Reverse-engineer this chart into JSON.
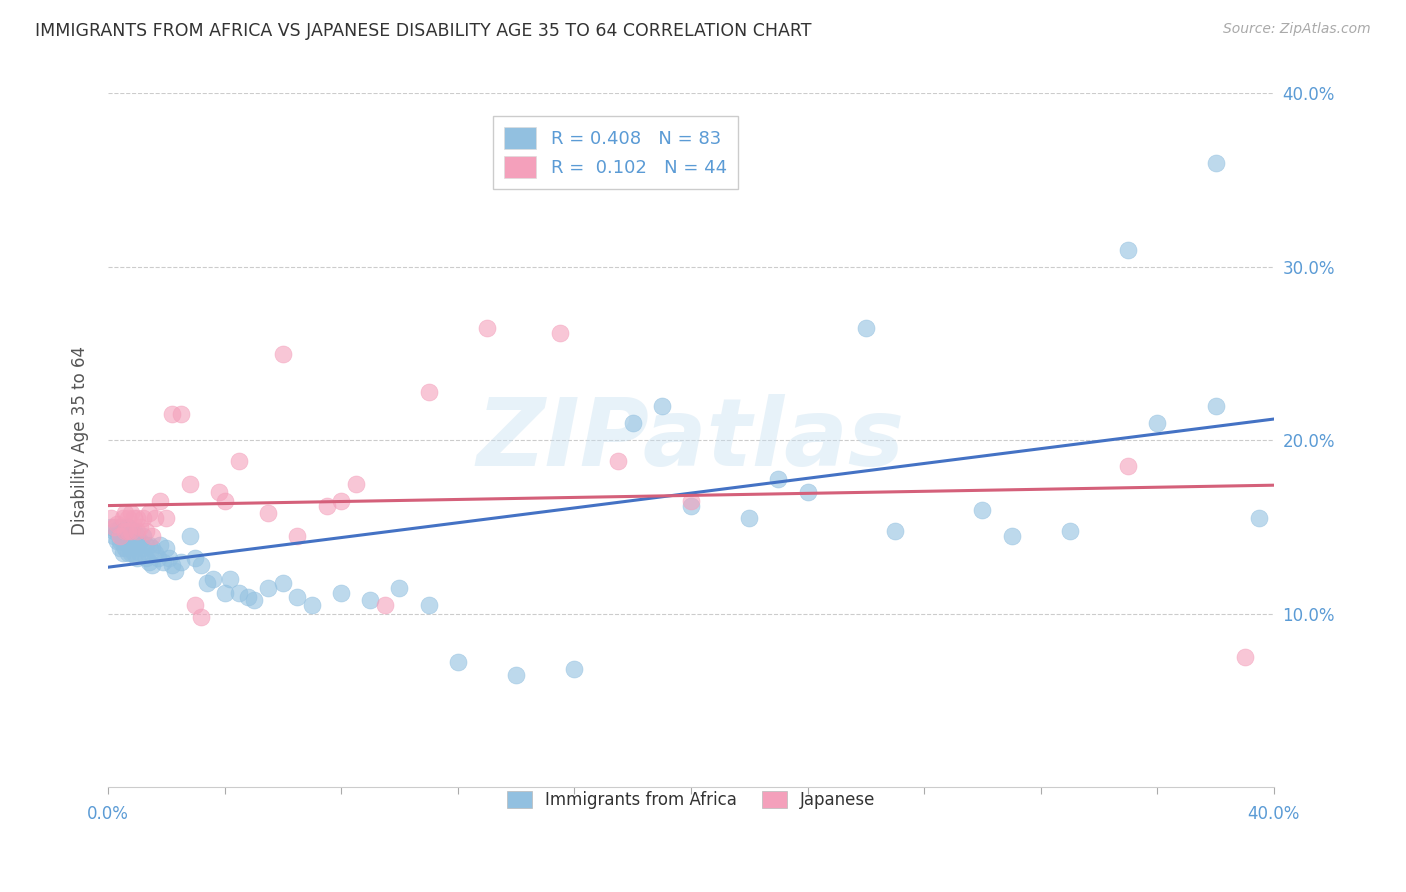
{
  "title": "IMMIGRANTS FROM AFRICA VS JAPANESE DISABILITY AGE 35 TO 64 CORRELATION CHART",
  "source": "Source: ZipAtlas.com",
  "ylabel": "Disability Age 35 to 64",
  "xlim": [
    0.0,
    0.4
  ],
  "ylim": [
    0.0,
    0.4
  ],
  "xticks": [
    0.0,
    0.4
  ],
  "xticklabels": [
    "0.0%",
    "40.0%"
  ],
  "yticks": [
    0.1,
    0.2,
    0.3,
    0.4
  ],
  "yticklabels": [
    "10.0%",
    "20.0%",
    "30.0%",
    "40.0%"
  ],
  "legend_label1": "R = 0.408   N = 83",
  "legend_label2": "R =  0.102   N = 44",
  "legend_labels_bottom": [
    "Immigrants from Africa",
    "Japanese"
  ],
  "watermark": "ZIPatlas",
  "blue_color": "#92c0e0",
  "pink_color": "#f4a0bb",
  "blue_line_color": "#4472c4",
  "pink_line_color": "#d4607a",
  "axis_color": "#5b9bd5",
  "grid_color": "#cccccc",
  "africa_x": [
    0.001,
    0.002,
    0.002,
    0.003,
    0.003,
    0.004,
    0.004,
    0.004,
    0.005,
    0.005,
    0.005,
    0.006,
    0.006,
    0.006,
    0.007,
    0.007,
    0.007,
    0.007,
    0.008,
    0.008,
    0.008,
    0.009,
    0.009,
    0.009,
    0.01,
    0.01,
    0.01,
    0.011,
    0.011,
    0.012,
    0.012,
    0.013,
    0.013,
    0.014,
    0.014,
    0.015,
    0.015,
    0.016,
    0.017,
    0.018,
    0.019,
    0.02,
    0.021,
    0.022,
    0.023,
    0.025,
    0.028,
    0.03,
    0.032,
    0.034,
    0.036,
    0.04,
    0.042,
    0.045,
    0.048,
    0.05,
    0.055,
    0.06,
    0.065,
    0.07,
    0.08,
    0.09,
    0.1,
    0.11,
    0.12,
    0.14,
    0.16,
    0.18,
    0.2,
    0.22,
    0.24,
    0.27,
    0.3,
    0.33,
    0.36,
    0.38,
    0.395,
    0.38,
    0.35,
    0.31,
    0.26,
    0.23,
    0.19
  ],
  "africa_y": [
    0.15,
    0.148,
    0.145,
    0.148,
    0.142,
    0.15,
    0.142,
    0.138,
    0.148,
    0.142,
    0.135,
    0.148,
    0.142,
    0.138,
    0.15,
    0.145,
    0.14,
    0.135,
    0.148,
    0.142,
    0.135,
    0.148,
    0.14,
    0.135,
    0.145,
    0.14,
    0.132,
    0.142,
    0.135,
    0.145,
    0.138,
    0.14,
    0.132,
    0.14,
    0.13,
    0.138,
    0.128,
    0.135,
    0.132,
    0.14,
    0.13,
    0.138,
    0.132,
    0.128,
    0.125,
    0.13,
    0.145,
    0.132,
    0.128,
    0.118,
    0.12,
    0.112,
    0.12,
    0.112,
    0.11,
    0.108,
    0.115,
    0.118,
    0.11,
    0.105,
    0.112,
    0.108,
    0.115,
    0.105,
    0.072,
    0.065,
    0.068,
    0.21,
    0.162,
    0.155,
    0.17,
    0.148,
    0.16,
    0.148,
    0.21,
    0.36,
    0.155,
    0.22,
    0.31,
    0.145,
    0.265,
    0.178,
    0.22
  ],
  "japan_x": [
    0.001,
    0.002,
    0.003,
    0.004,
    0.005,
    0.006,
    0.006,
    0.007,
    0.007,
    0.008,
    0.008,
    0.009,
    0.01,
    0.01,
    0.011,
    0.012,
    0.013,
    0.014,
    0.015,
    0.016,
    0.018,
    0.02,
    0.022,
    0.025,
    0.028,
    0.032,
    0.038,
    0.045,
    0.055,
    0.065,
    0.075,
    0.085,
    0.095,
    0.11,
    0.13,
    0.155,
    0.175,
    0.2,
    0.35,
    0.39,
    0.08,
    0.04,
    0.03,
    0.06
  ],
  "japan_y": [
    0.155,
    0.15,
    0.152,
    0.145,
    0.155,
    0.158,
    0.148,
    0.155,
    0.148,
    0.158,
    0.148,
    0.155,
    0.148,
    0.155,
    0.15,
    0.155,
    0.148,
    0.158,
    0.145,
    0.155,
    0.165,
    0.155,
    0.215,
    0.215,
    0.175,
    0.098,
    0.17,
    0.188,
    0.158,
    0.145,
    0.162,
    0.175,
    0.105,
    0.228,
    0.265,
    0.262,
    0.188,
    0.165,
    0.185,
    0.075,
    0.165,
    0.165,
    0.105,
    0.25
  ]
}
